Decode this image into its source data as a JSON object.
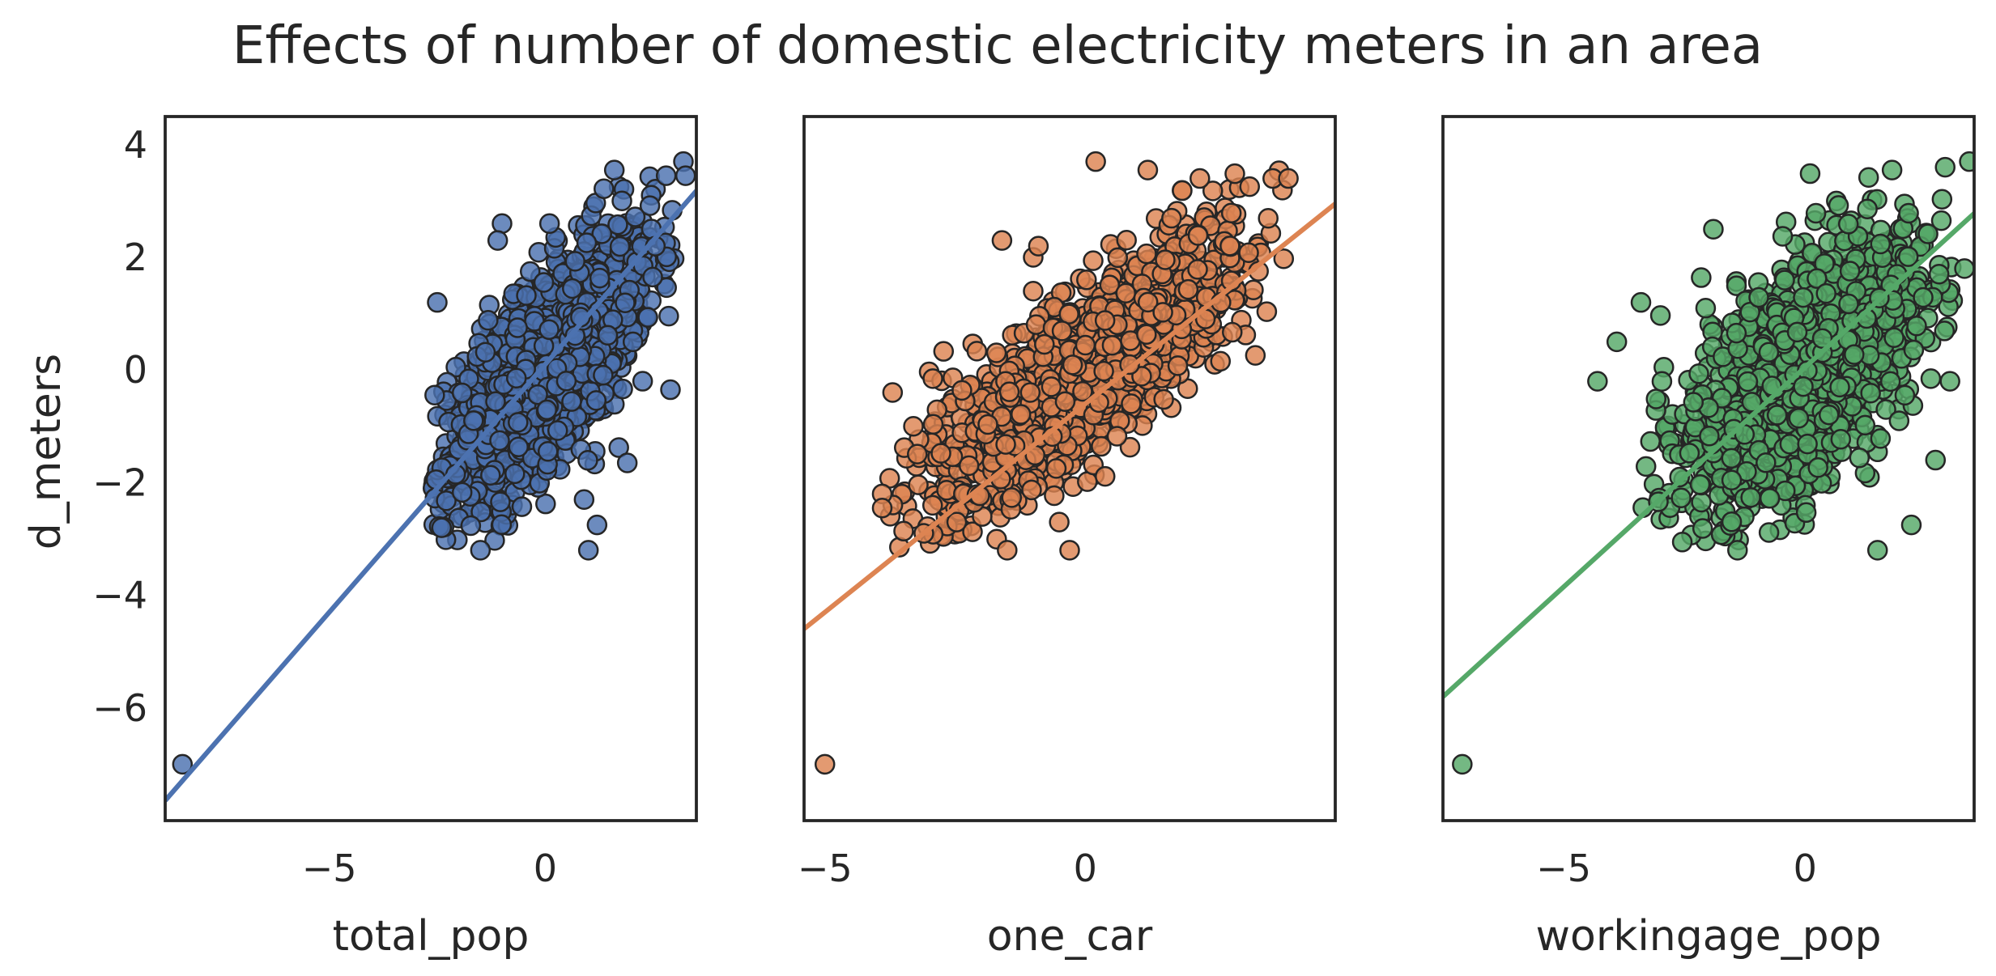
{
  "title": "Effects of number of domestic electricity meters in an area",
  "shared_y_label": "d_meters",
  "colors": {
    "blue": "#4c72b0",
    "orange": "#dd8452",
    "green": "#55a868",
    "edge": "#262626",
    "frame": "#262626"
  },
  "chart_data": [
    {
      "type": "scatter",
      "title": "",
      "xlabel": "total_pop",
      "ylabel": "d_meters",
      "xlim": [
        -8.8,
        3.5
      ],
      "ylim": [
        -8.0,
        4.5
      ],
      "x_ticks": [
        -5,
        0
      ],
      "x_tick_labels": [
        "−5",
        "0"
      ],
      "y_ticks": [
        -6,
        -4,
        -2,
        0,
        2,
        4
      ],
      "y_tick_labels": [
        "−6",
        "−4",
        "−2",
        "0",
        "2",
        "4"
      ],
      "grid": false,
      "marker_color": "#4c72b0",
      "line_color": "#4c72b0",
      "regression_line": {
        "slope": 0.88,
        "intercept": 0.1
      },
      "points": [
        [
          -8.4,
          -7.0
        ],
        [
          -2.5,
          1.2
        ],
        [
          -1.0,
          2.6
        ],
        [
          -1.1,
          2.3
        ],
        [
          0.1,
          2.6
        ],
        [
          1.6,
          3.55
        ],
        [
          3.2,
          3.7
        ],
        [
          2.8,
          3.45
        ],
        [
          3.25,
          3.45
        ],
        [
          -1.5,
          -3.2
        ],
        [
          1.0,
          -3.2
        ],
        [
          1.2,
          -2.75
        ],
        [
          2.9,
          -0.35
        ],
        [
          1.9,
          -1.65
        ],
        [
          2.55,
          2.2
        ],
        [
          -2.4,
          -2.8
        ],
        [
          0.9,
          -2.3
        ]
      ],
      "cloud": {
        "mean_x": 0.0,
        "mean_y": 0.0,
        "sd_x": 1.25,
        "sd_y": 1.25,
        "corr": 0.72,
        "n": 1400,
        "x_range": [
          -2.6,
          3.0
        ],
        "y_range": [
          -3.2,
          3.6
        ]
      }
    },
    {
      "type": "scatter",
      "title": "",
      "xlabel": "one_car",
      "ylabel": "",
      "xlim": [
        -5.4,
        4.8
      ],
      "ylim": [
        -8.0,
        4.5
      ],
      "x_ticks": [
        -5,
        0
      ],
      "x_tick_labels": [
        "−5",
        "0"
      ],
      "y_ticks": [
        -6,
        -4,
        -2,
        0,
        2,
        4
      ],
      "y_tick_labels": [],
      "grid": false,
      "marker_color": "#dd8452",
      "line_color": "#dd8452",
      "regression_line": {
        "slope": 0.74,
        "intercept": -0.6
      },
      "points": [
        [
          -5.0,
          -7.0
        ],
        [
          0.2,
          3.7
        ],
        [
          1.2,
          3.55
        ],
        [
          2.2,
          3.4
        ],
        [
          3.6,
          3.4
        ],
        [
          3.9,
          3.4
        ],
        [
          -1.6,
          2.3
        ],
        [
          -1.0,
          2.0
        ],
        [
          -0.9,
          2.2
        ],
        [
          -1.0,
          1.4
        ],
        [
          -3.7,
          -0.4
        ],
        [
          -3.9,
          -2.2
        ],
        [
          -3.9,
          -2.45
        ],
        [
          -3.1,
          -2.9
        ],
        [
          -1.5,
          -3.2
        ],
        [
          -0.3,
          -3.2
        ],
        [
          -0.5,
          -2.7
        ]
      ],
      "cloud": {
        "mean_x": 0.0,
        "mean_y": 0.0,
        "sd_x": 1.5,
        "sd_y": 1.25,
        "corr": 0.82,
        "n": 1400,
        "x_range": [
          -3.8,
          4.0
        ],
        "y_range": [
          -3.2,
          3.6
        ]
      }
    },
    {
      "type": "scatter",
      "title": "",
      "xlabel": "workingage_pop",
      "ylabel": "",
      "xlim": [
        -7.5,
        3.5
      ],
      "ylim": [
        -8.0,
        4.5
      ],
      "x_ticks": [
        -5,
        0
      ],
      "x_tick_labels": [
        "−5",
        "0"
      ],
      "y_ticks": [
        -6,
        -4,
        -2,
        0,
        2,
        4
      ],
      "y_tick_labels": [],
      "grid": false,
      "marker_color": "#55a868",
      "line_color": "#55a868",
      "regression_line": {
        "slope": 0.78,
        "intercept": 0.05
      },
      "points": [
        [
          -7.1,
          -7.0
        ],
        [
          -4.3,
          -0.2
        ],
        [
          -3.4,
          1.2
        ],
        [
          -3.9,
          0.5
        ],
        [
          -1.4,
          -3.2
        ],
        [
          1.5,
          -3.2
        ],
        [
          2.2,
          -2.75
        ],
        [
          2.7,
          -1.6
        ],
        [
          3.0,
          -0.2
        ],
        [
          3.3,
          1.8
        ],
        [
          3.4,
          3.7
        ],
        [
          2.9,
          3.6
        ],
        [
          1.8,
          3.55
        ],
        [
          -1.9,
          2.5
        ],
        [
          -2.6,
          -1.9
        ]
      ],
      "cloud": {
        "mean_x": 0.0,
        "mean_y": 0.0,
        "sd_x": 1.25,
        "sd_y": 1.25,
        "corr": 0.6,
        "n": 1400,
        "x_range": [
          -3.4,
          3.2
        ],
        "y_range": [
          -3.2,
          3.6
        ]
      }
    }
  ]
}
